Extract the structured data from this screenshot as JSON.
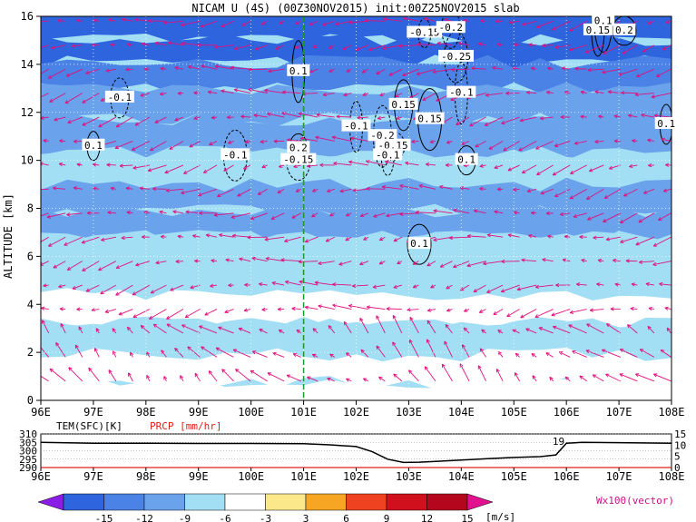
{
  "chart_data": [
    {
      "type": "heatmap",
      "title": "NICAM U (4S) (00Z30NOV2015) init:00Z25NOV2015 slab",
      "ylabel": "ALTITUDE [km]",
      "xlabel": "",
      "xlim": [
        96,
        108
      ],
      "ylim": [
        0,
        16
      ],
      "x_ticks": [
        "96E",
        "97E",
        "98E",
        "99E",
        "100E",
        "101E",
        "102E",
        "103E",
        "104E",
        "105E",
        "106E",
        "107E",
        "108E"
      ],
      "y_ticks": [
        "0",
        "2",
        "4",
        "6",
        "8",
        "10",
        "12",
        "14",
        "16"
      ],
      "marker_longitude": 101,
      "grid": true,
      "colorbar": {
        "levels": [
          "-15",
          "-12",
          "-9",
          "-6",
          "-3",
          "3",
          "6",
          "9",
          "12",
          "15"
        ],
        "unit": "[m/s]",
        "colors": [
          "#8a1ee6",
          "#2e64dd",
          "#4a82e6",
          "#6aa2ec",
          "#a2def4",
          "#ffffff",
          "#fbe88a",
          "#f7a623",
          "#ef4221",
          "#d1101e",
          "#b4071d",
          "#e2118f"
        ]
      },
      "band_levels": [
        {
          "alt": 15.5,
          "u": -15
        },
        {
          "alt": 14.6,
          "u": -13
        },
        {
          "alt": 13.6,
          "u": -10
        },
        {
          "alt": 12.4,
          "u": -7
        },
        {
          "alt": 11.0,
          "u": -8
        },
        {
          "alt": 9.6,
          "u": -5
        },
        {
          "alt": 8.4,
          "u": -7
        },
        {
          "alt": 7.4,
          "u": -9
        },
        {
          "alt": 6.2,
          "u": -6
        },
        {
          "alt": 5.0,
          "u": -4
        },
        {
          "alt": 3.8,
          "u": -3
        },
        {
          "alt": 2.6,
          "u": -4
        },
        {
          "alt": 1.2,
          "u": -3
        },
        {
          "alt": 0.3,
          "u": -1
        }
      ],
      "vector_label": "Wx100(vector)",
      "vector_color": "#e0107e",
      "contour_labels": [
        {
          "text": "0.1",
          "lon": 97.0,
          "alt": 10.6
        },
        {
          "text": "-0.1",
          "lon": 97.5,
          "alt": 12.6
        },
        {
          "text": "-0.1",
          "lon": 99.7,
          "alt": 10.2
        },
        {
          "text": "0.1",
          "lon": 100.9,
          "alt": 13.7
        },
        {
          "text": "0.2",
          "lon": 100.9,
          "alt": 10.5
        },
        {
          "text": "-0.15",
          "lon": 100.9,
          "alt": 10.0
        },
        {
          "text": "-0.1",
          "lon": 102.0,
          "alt": 11.4
        },
        {
          "text": "-0.2",
          "lon": 102.5,
          "alt": 11.0
        },
        {
          "text": "-0.15",
          "lon": 102.7,
          "alt": 10.6
        },
        {
          "text": "-0.1",
          "lon": 102.6,
          "alt": 10.2
        },
        {
          "text": "0.15",
          "lon": 102.9,
          "alt": 12.3
        },
        {
          "text": "0.15",
          "lon": 103.4,
          "alt": 11.7
        },
        {
          "text": "-0.15",
          "lon": 103.3,
          "alt": 15.3
        },
        {
          "text": "-0.2",
          "lon": 103.8,
          "alt": 15.5
        },
        {
          "text": "-0.25",
          "lon": 103.9,
          "alt": 14.3
        },
        {
          "text": "-0.1",
          "lon": 104.0,
          "alt": 12.8
        },
        {
          "text": "0.1",
          "lon": 104.1,
          "alt": 10.0
        },
        {
          "text": "0.1",
          "lon": 103.2,
          "alt": 6.5
        },
        {
          "text": "0.15",
          "lon": 106.6,
          "alt": 15.4
        },
        {
          "text": "0.1",
          "lon": 106.7,
          "alt": 15.8
        },
        {
          "text": "0.2",
          "lon": 107.1,
          "alt": 15.4
        },
        {
          "text": "0.1",
          "lon": 107.9,
          "alt": 11.5
        }
      ]
    },
    {
      "type": "line",
      "title": "",
      "xlim": [
        96,
        108
      ],
      "series": [
        {
          "name": "TEM(SFC)[K]",
          "ylim": [
            290,
            310
          ],
          "y_ticks": [
            "290",
            "295",
            "300",
            "305",
            "310"
          ],
          "x": [
            96,
            97,
            98,
            99,
            100,
            101,
            101.5,
            102,
            102.3,
            102.6,
            102.9,
            103.2,
            103.6,
            104.0,
            104.5,
            105.0,
            105.5,
            105.8,
            106.0,
            106.3,
            107.0,
            108.0
          ],
          "values": [
            305,
            304.5,
            304.5,
            304.3,
            304.3,
            304.2,
            303.5,
            302.5,
            299.5,
            295,
            293,
            293.2,
            293.8,
            294.5,
            295.3,
            296,
            296.5,
            297.5,
            304.5,
            305,
            304.8,
            304.5
          ]
        },
        {
          "name": "PRCP [mm/hr]",
          "ylim": [
            0,
            15
          ],
          "y_ticks": [
            "0",
            "5",
            "10",
            "15"
          ],
          "x": [
            96,
            108
          ],
          "values": [
            0,
            0
          ],
          "annotations": [
            {
              "text": "19",
              "lon": 106.0
            }
          ]
        }
      ]
    }
  ]
}
